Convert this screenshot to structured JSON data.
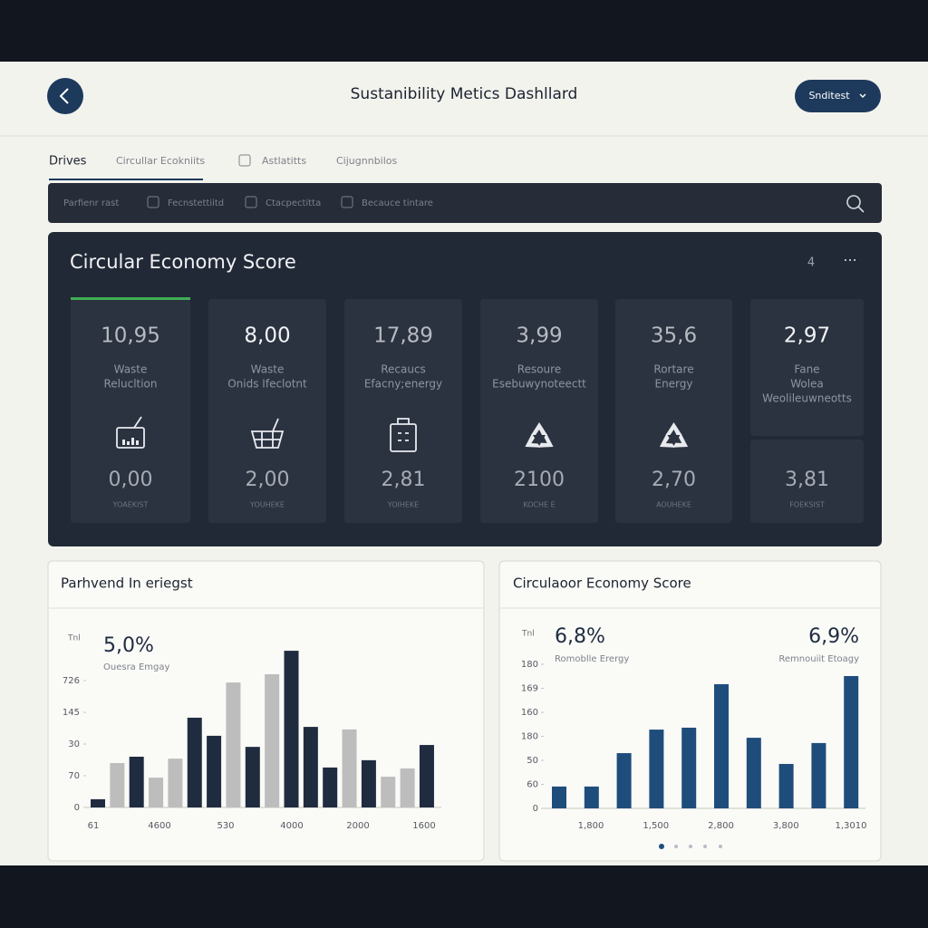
{
  "header": {
    "title": "Sustanibility Metics Dashllard",
    "button": "Snditest"
  },
  "tabs": [
    "Drives",
    "Circullar Ecokniits",
    "Astlatitts",
    "Cijugnnbilos"
  ],
  "filters": [
    "Parfienr rast",
    "Fecnstettiitd",
    "Ctacpectitta",
    "Becauce tintare"
  ],
  "score_panel": {
    "title": "Circular Economy Score",
    "count": "4",
    "cards": [
      {
        "value": "10,95",
        "label": [
          "Waste",
          "Relucltion"
        ],
        "sub_value": "0,00",
        "caption": "YOAEKIST"
      },
      {
        "value": "8,00",
        "label": [
          "Waste",
          "Onids Ifeclotnt"
        ],
        "sub_value": "2,00",
        "caption": "YOUHEKE"
      },
      {
        "value": "17,89",
        "label": [
          "Recaucs",
          "Efacny;energy"
        ],
        "sub_value": "2,81",
        "caption": "YOIHEKE"
      },
      {
        "value": "3,99",
        "label": [
          "Resoure",
          "Esebuwynoteectt"
        ],
        "sub_value": "2100",
        "caption": "KOCHE E"
      },
      {
        "value": "35,6",
        "label": [
          "Rortare",
          "Energy"
        ],
        "sub_value": "2,70",
        "caption": "AOUHEKE"
      },
      {
        "value": "2,97",
        "label": [
          "Fane",
          "Wolea",
          "Weolileuwneotts"
        ],
        "sub_value": "3,81",
        "caption": "FOEKSIST"
      }
    ]
  },
  "chart_data": [
    {
      "type": "bar",
      "title": "Parhvend In eriegst",
      "axis_label": "Tnl",
      "annotations": [
        {
          "value": "5,0%",
          "label": "Ouesra Emgay"
        }
      ],
      "values": [
        0.26,
        1.4,
        1.6,
        0.94,
        1.54,
        2.83,
        2.26,
        3.94,
        1.91,
        4.2,
        4.94,
        2.54,
        1.26,
        2.46,
        1.49,
        0.97,
        1.23,
        1.97
      ],
      "colors": [
        "#1f2c40",
        "#bdbdbd",
        "#1f2c40",
        "#bdbdbd",
        "#bdbdbd",
        "#1f2c40",
        "#1f2c40",
        "#bdbdbd",
        "#1f2c40",
        "#bdbdbd",
        "#1f2c40",
        "#1f2c40",
        "#1f2c40",
        "#bdbdbd",
        "#1f2c40",
        "#bdbdbd",
        "#bdbdbd",
        "#1f2c40"
      ],
      "ylim": [
        0,
        5
      ],
      "yticks": [
        {
          "value": 0,
          "label": "0"
        },
        {
          "value": 1,
          "label": "70"
        },
        {
          "value": 2,
          "label": "30"
        },
        {
          "value": 3,
          "label": "145"
        },
        {
          "value": 4,
          "label": "726"
        }
      ],
      "xtick_labels": [
        "61",
        "4600",
        "530",
        "4000",
        "2000",
        "1600"
      ]
    },
    {
      "type": "bar",
      "title": "Circulaoor Economy Score",
      "axis_label": "Tnl",
      "annotations": [
        {
          "value": "6,8%",
          "label": "Romoblle Erergy"
        },
        {
          "value": "6,9%",
          "label": "Remnouiit Etoagy"
        }
      ],
      "values": [
        0.91,
        0.91,
        2.3,
        3.28,
        3.36,
        5.17,
        2.94,
        1.85,
        2.72,
        5.51
      ],
      "color": "#1e4d7b",
      "ylim": [
        0,
        6
      ],
      "yticks": [
        {
          "value": 0,
          "label": "0"
        },
        {
          "value": 1,
          "label": "60"
        },
        {
          "value": 2,
          "label": "50"
        },
        {
          "value": 3,
          "label": "180"
        },
        {
          "value": 4,
          "label": "160"
        },
        {
          "value": 5,
          "label": "169"
        },
        {
          "value": 6,
          "label": "180"
        }
      ],
      "xtick_labels": [
        "1,800",
        "1,500",
        "2,800",
        "3,800",
        "1,3010"
      ]
    }
  ]
}
